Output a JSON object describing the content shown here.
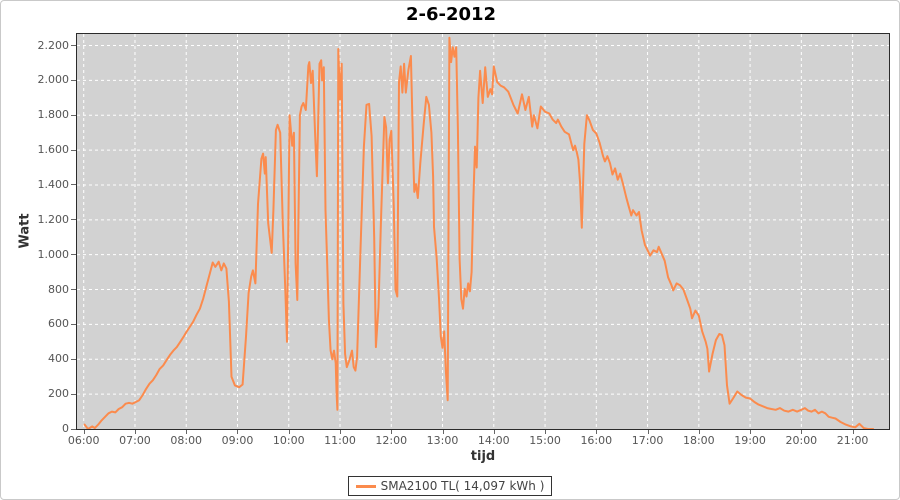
{
  "title": "2-6-2012",
  "colors": {
    "series_line": "#fb8b4d",
    "plot_background": "#d2d2d2",
    "gridline": "#ffffff",
    "plot_border": "#2b2b2b",
    "tick_text": "#555555"
  },
  "legend": {
    "label": "SMA2100 TL( 14,097 kWh )"
  },
  "chart_data": {
    "type": "line",
    "title": "2-6-2012",
    "xlabel": "tijd",
    "ylabel": "Watt",
    "grid": true,
    "legend_position": "bottom-center",
    "x_range_hours": [
      5.869,
      21.71
    ],
    "ylim": [
      0,
      2266
    ],
    "x_tick_hours": [
      6,
      7,
      8,
      9,
      10,
      11,
      12,
      13,
      14,
      15,
      16,
      17,
      18,
      19,
      20,
      21
    ],
    "x_tick_labels": [
      "06:00",
      "07:00",
      "08:00",
      "09:00",
      "10:00",
      "11:00",
      "12:00",
      "13:00",
      "14:00",
      "15:00",
      "16:00",
      "17:00",
      "18:00",
      "19:00",
      "20:00",
      "21:00"
    ],
    "y_tick_values": [
      0,
      200,
      400,
      600,
      800,
      1000,
      1200,
      1400,
      1600,
      1800,
      2000,
      2200
    ],
    "y_tick_labels": [
      "0",
      "200",
      "400",
      "600",
      "800",
      "1.000",
      "1.200",
      "1.400",
      "1.600",
      "1.800",
      "2.000",
      "2.200"
    ],
    "series": [
      {
        "name": "SMA2100 TL( 14,097 kWh )",
        "color": "#fb8b4d",
        "points": [
          [
            "06:01",
            25
          ],
          [
            "06:05",
            0
          ],
          [
            "06:10",
            15
          ],
          [
            "06:13",
            5
          ],
          [
            "06:17",
            25
          ],
          [
            "06:21",
            50
          ],
          [
            "06:25",
            70
          ],
          [
            "06:29",
            90
          ],
          [
            "06:33",
            100
          ],
          [
            "06:37",
            95
          ],
          [
            "06:41",
            115
          ],
          [
            "06:45",
            125
          ],
          [
            "06:49",
            145
          ],
          [
            "06:53",
            150
          ],
          [
            "06:57",
            145
          ],
          [
            "07:01",
            155
          ],
          [
            "07:05",
            165
          ],
          [
            "07:09",
            195
          ],
          [
            "07:13",
            230
          ],
          [
            "07:17",
            260
          ],
          [
            "07:21",
            280
          ],
          [
            "07:25",
            310
          ],
          [
            "07:29",
            345
          ],
          [
            "07:33",
            365
          ],
          [
            "07:37",
            395
          ],
          [
            "07:41",
            425
          ],
          [
            "07:45",
            450
          ],
          [
            "07:49",
            470
          ],
          [
            "07:53",
            500
          ],
          [
            "07:57",
            530
          ],
          [
            "08:00",
            555
          ],
          [
            "08:04",
            585
          ],
          [
            "08:08",
            615
          ],
          [
            "08:12",
            655
          ],
          [
            "08:16",
            690
          ],
          [
            "08:20",
            750
          ],
          [
            "08:24",
            825
          ],
          [
            "08:28",
            900
          ],
          [
            "08:31",
            955
          ],
          [
            "08:34",
            930
          ],
          [
            "08:38",
            960
          ],
          [
            "08:41",
            910
          ],
          [
            "08:44",
            950
          ],
          [
            "08:47",
            920
          ],
          [
            "08:50",
            730
          ],
          [
            "08:53",
            300
          ],
          [
            "08:57",
            250
          ],
          [
            "09:02",
            240
          ],
          [
            "09:06",
            255
          ],
          [
            "09:10",
            530
          ],
          [
            "09:13",
            780
          ],
          [
            "09:16",
            875
          ],
          [
            "09:18",
            910
          ],
          [
            "09:21",
            835
          ],
          [
            "09:24",
            1290
          ],
          [
            "09:28",
            1550
          ],
          [
            "09:30",
            1580
          ],
          [
            "09:32",
            1465
          ],
          [
            "09:33",
            1560
          ],
          [
            "09:36",
            1180
          ],
          [
            "09:40",
            1010
          ],
          [
            "09:42",
            1255
          ],
          [
            "09:45",
            1715
          ],
          [
            "09:47",
            1745
          ],
          [
            "09:50",
            1700
          ],
          [
            "09:53",
            1180
          ],
          [
            "09:56",
            800
          ],
          [
            "09:58",
            500
          ],
          [
            "10:01",
            1800
          ],
          [
            "10:04",
            1625
          ],
          [
            "10:06",
            1700
          ],
          [
            "10:08",
            950
          ],
          [
            "10:10",
            740
          ],
          [
            "10:13",
            1800
          ],
          [
            "10:15",
            1850
          ],
          [
            "10:17",
            1870
          ],
          [
            "10:20",
            1830
          ],
          [
            "10:23",
            2085
          ],
          [
            "10:24",
            2105
          ],
          [
            "10:26",
            1985
          ],
          [
            "10:28",
            2055
          ],
          [
            "10:31",
            1680
          ],
          [
            "10:33",
            1450
          ],
          [
            "10:36",
            2095
          ],
          [
            "10:38",
            2115
          ],
          [
            "10:39",
            2000
          ],
          [
            "10:41",
            2075
          ],
          [
            "10:43",
            1255
          ],
          [
            "10:45",
            950
          ],
          [
            "10:47",
            625
          ],
          [
            "10:49",
            450
          ],
          [
            "10:51",
            400
          ],
          [
            "10:53",
            450
          ],
          [
            "10:55",
            380
          ],
          [
            "10:56",
            205
          ],
          [
            "10:57",
            110
          ],
          [
            "10:58",
            2180
          ],
          [
            "11:00",
            1890
          ],
          [
            "11:02",
            2095
          ],
          [
            "11:04",
            720
          ],
          [
            "11:06",
            430
          ],
          [
            "11:08",
            355
          ],
          [
            "11:11",
            395
          ],
          [
            "11:14",
            450
          ],
          [
            "11:16",
            355
          ],
          [
            "11:18",
            335
          ],
          [
            "11:20",
            415
          ],
          [
            "11:24",
            1030
          ],
          [
            "11:28",
            1620
          ],
          [
            "11:31",
            1860
          ],
          [
            "11:34",
            1865
          ],
          [
            "11:37",
            1680
          ],
          [
            "11:40",
            1100
          ],
          [
            "11:42",
            470
          ],
          [
            "11:45",
            700
          ],
          [
            "11:48",
            1200
          ],
          [
            "11:50",
            1500
          ],
          [
            "11:52",
            1790
          ],
          [
            "11:54",
            1730
          ],
          [
            "11:56",
            1410
          ],
          [
            "11:58",
            1660
          ],
          [
            "12:00",
            1710
          ],
          [
            "12:03",
            1270
          ],
          [
            "12:05",
            800
          ],
          [
            "12:07",
            760
          ],
          [
            "12:09",
            1990
          ],
          [
            "12:11",
            2080
          ],
          [
            "12:13",
            1930
          ],
          [
            "12:15",
            2095
          ],
          [
            "12:17",
            1930
          ],
          [
            "12:20",
            2060
          ],
          [
            "12:23",
            2140
          ],
          [
            "12:26",
            1505
          ],
          [
            "12:27",
            1360
          ],
          [
            "12:29",
            1405
          ],
          [
            "12:31",
            1325
          ],
          [
            "12:34",
            1525
          ],
          [
            "12:38",
            1750
          ],
          [
            "12:41",
            1905
          ],
          [
            "12:44",
            1860
          ],
          [
            "12:47",
            1700
          ],
          [
            "12:49",
            1450
          ],
          [
            "12:50",
            1160
          ],
          [
            "12:53",
            985
          ],
          [
            "12:56",
            740
          ],
          [
            "12:58",
            530
          ],
          [
            "13:00",
            465
          ],
          [
            "13:02",
            560
          ],
          [
            "13:04",
            330
          ],
          [
            "13:06",
            165
          ],
          [
            "13:08",
            2245
          ],
          [
            "13:10",
            2105
          ],
          [
            "13:12",
            2190
          ],
          [
            "13:14",
            2135
          ],
          [
            "13:16",
            2190
          ],
          [
            "13:18",
            1720
          ],
          [
            "13:20",
            975
          ],
          [
            "13:22",
            745
          ],
          [
            "13:24",
            690
          ],
          [
            "13:26",
            805
          ],
          [
            "13:28",
            760
          ],
          [
            "13:30",
            835
          ],
          [
            "13:32",
            790
          ],
          [
            "13:34",
            900
          ],
          [
            "13:36",
            1300
          ],
          [
            "13:38",
            1620
          ],
          [
            "13:40",
            1500
          ],
          [
            "13:42",
            1900
          ],
          [
            "13:44",
            2055
          ],
          [
            "13:47",
            1870
          ],
          [
            "13:50",
            2075
          ],
          [
            "13:53",
            1905
          ],
          [
            "13:56",
            1950
          ],
          [
            "13:58",
            1920
          ],
          [
            "14:00",
            2080
          ],
          [
            "14:04",
            1990
          ],
          [
            "14:08",
            1970
          ],
          [
            "14:12",
            1960
          ],
          [
            "14:17",
            1935
          ],
          [
            "14:23",
            1860
          ],
          [
            "14:28",
            1810
          ],
          [
            "14:33",
            1920
          ],
          [
            "14:37",
            1830
          ],
          [
            "14:41",
            1905
          ],
          [
            "14:45",
            1735
          ],
          [
            "14:47",
            1800
          ],
          [
            "14:51",
            1725
          ],
          [
            "14:55",
            1850
          ],
          [
            "15:00",
            1820
          ],
          [
            "15:05",
            1810
          ],
          [
            "15:09",
            1775
          ],
          [
            "15:13",
            1755
          ],
          [
            "15:15",
            1775
          ],
          [
            "15:19",
            1735
          ],
          [
            "15:23",
            1705
          ],
          [
            "15:28",
            1690
          ],
          [
            "15:31",
            1635
          ],
          [
            "15:33",
            1600
          ],
          [
            "15:35",
            1625
          ],
          [
            "15:37",
            1590
          ],
          [
            "15:39",
            1545
          ],
          [
            "15:41",
            1410
          ],
          [
            "15:43",
            1155
          ],
          [
            "15:46",
            1635
          ],
          [
            "15:49",
            1800
          ],
          [
            "15:52",
            1770
          ],
          [
            "15:56",
            1715
          ],
          [
            "16:00",
            1695
          ],
          [
            "16:04",
            1640
          ],
          [
            "16:08",
            1565
          ],
          [
            "16:10",
            1535
          ],
          [
            "16:13",
            1565
          ],
          [
            "16:16",
            1525
          ],
          [
            "16:19",
            1460
          ],
          [
            "16:22",
            1495
          ],
          [
            "16:25",
            1430
          ],
          [
            "16:28",
            1465
          ],
          [
            "16:31",
            1410
          ],
          [
            "16:35",
            1330
          ],
          [
            "16:38",
            1275
          ],
          [
            "16:41",
            1225
          ],
          [
            "16:43",
            1255
          ],
          [
            "16:47",
            1225
          ],
          [
            "16:50",
            1245
          ],
          [
            "16:53",
            1140
          ],
          [
            "16:57",
            1055
          ],
          [
            "17:00",
            1025
          ],
          [
            "17:03",
            995
          ],
          [
            "17:07",
            1025
          ],
          [
            "17:11",
            1015
          ],
          [
            "17:13",
            1045
          ],
          [
            "17:17",
            1000
          ],
          [
            "17:20",
            965
          ],
          [
            "17:24",
            870
          ],
          [
            "17:28",
            825
          ],
          [
            "17:30",
            795
          ],
          [
            "17:34",
            835
          ],
          [
            "17:38",
            825
          ],
          [
            "17:42",
            800
          ],
          [
            "17:46",
            745
          ],
          [
            "17:50",
            690
          ],
          [
            "17:52",
            635
          ],
          [
            "17:56",
            680
          ],
          [
            "18:00",
            650
          ],
          [
            "18:04",
            560
          ],
          [
            "18:08",
            500
          ],
          [
            "18:10",
            460
          ],
          [
            "18:12",
            330
          ],
          [
            "18:16",
            430
          ],
          [
            "18:20",
            510
          ],
          [
            "18:24",
            545
          ],
          [
            "18:27",
            540
          ],
          [
            "18:30",
            480
          ],
          [
            "18:33",
            250
          ],
          [
            "18:36",
            145
          ],
          [
            "18:40",
            175
          ],
          [
            "18:45",
            215
          ],
          [
            "18:50",
            195
          ],
          [
            "18:55",
            180
          ],
          [
            "19:00",
            175
          ],
          [
            "19:05",
            155
          ],
          [
            "19:10",
            140
          ],
          [
            "19:15",
            130
          ],
          [
            "19:20",
            120
          ],
          [
            "19:25",
            115
          ],
          [
            "19:30",
            110
          ],
          [
            "19:35",
            120
          ],
          [
            "19:40",
            105
          ],
          [
            "19:45",
            100
          ],
          [
            "19:50",
            110
          ],
          [
            "19:55",
            100
          ],
          [
            "20:00",
            110
          ],
          [
            "20:04",
            120
          ],
          [
            "20:08",
            105
          ],
          [
            "20:12",
            100
          ],
          [
            "20:16",
            110
          ],
          [
            "20:20",
            90
          ],
          [
            "20:24",
            100
          ],
          [
            "20:28",
            90
          ],
          [
            "20:32",
            70
          ],
          [
            "20:36",
            65
          ],
          [
            "20:40",
            60
          ],
          [
            "20:46",
            40
          ],
          [
            "20:52",
            25
          ],
          [
            "20:58",
            15
          ],
          [
            "21:03",
            10
          ],
          [
            "21:08",
            30
          ],
          [
            "21:13",
            5
          ],
          [
            "21:18",
            0
          ],
          [
            "21:24",
            0
          ]
        ]
      }
    ]
  }
}
